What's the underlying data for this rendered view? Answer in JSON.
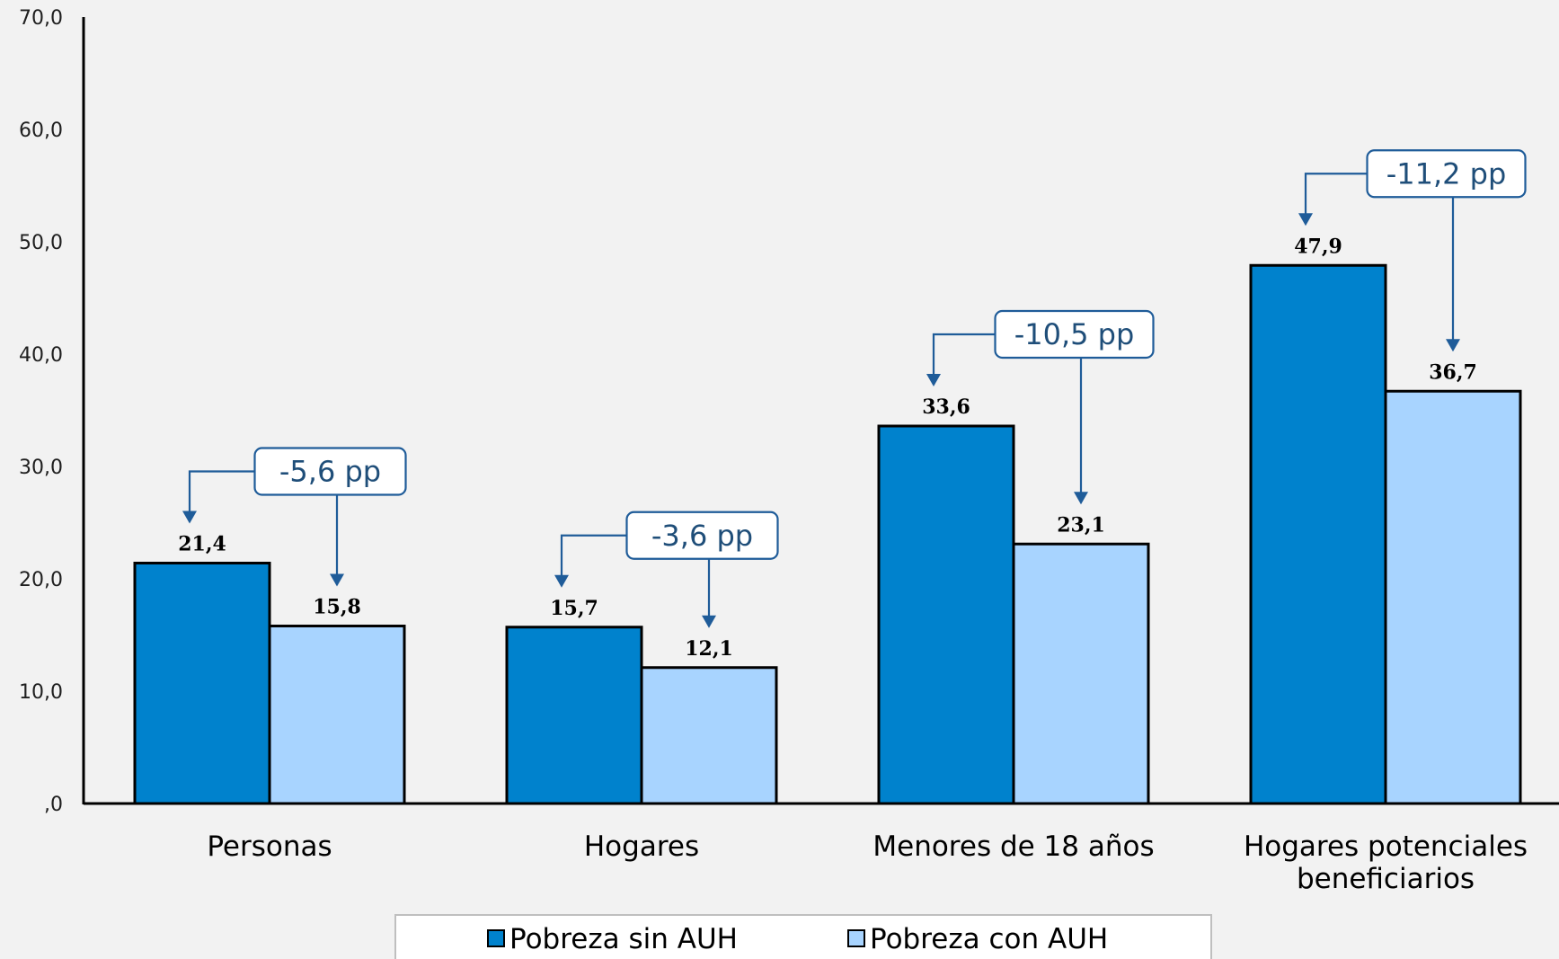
{
  "chart_data": {
    "type": "bar",
    "categories": [
      [
        "Personas"
      ],
      [
        "Hogares"
      ],
      [
        "Menores de 18 años"
      ],
      [
        "Hogares potenciales",
        "beneficiarios"
      ]
    ],
    "series": [
      {
        "name": "Pobreza sin AUH",
        "values": [
          21.4,
          15.7,
          33.6,
          47.9
        ],
        "labels": [
          "21,4",
          "15,7",
          "33,6",
          "47,9"
        ],
        "color": "#0082cd"
      },
      {
        "name": "Pobreza con AUH",
        "values": [
          15.8,
          12.1,
          23.1,
          36.7
        ],
        "labels": [
          "15,8",
          "12,1",
          "23,1",
          "36,7"
        ],
        "color": "#a8d4ff"
      }
    ],
    "differences": [
      "-5,6 pp",
      "-3,6 pp",
      "-10,5 pp",
      "-11,2 pp"
    ],
    "ylim": [
      0,
      70
    ],
    "yticks": [
      0,
      10,
      20,
      30,
      40,
      50,
      60,
      70
    ],
    "ytick_labels": [
      ",0",
      "10,0",
      "20,0",
      "30,0",
      "40,0",
      "50,0",
      "60,0",
      "70,0"
    ],
    "grid": false,
    "legend": "bottom",
    "accent_color": "#1f5c99",
    "background_color": "#f2f2f2"
  }
}
